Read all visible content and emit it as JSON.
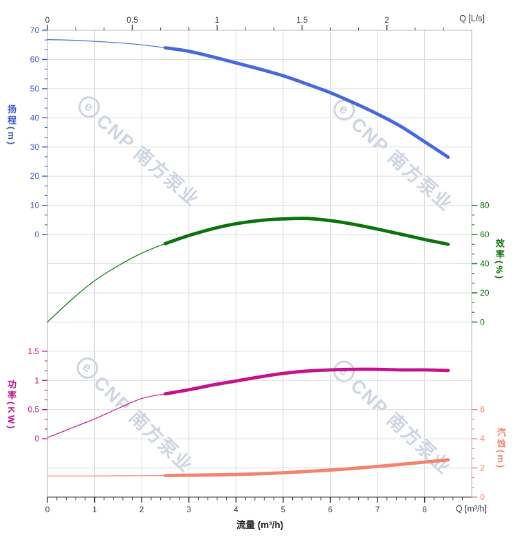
{
  "watermark": {
    "logo_letter": "e",
    "text": "CNP 南方泵业",
    "color": "#cdd4e2"
  },
  "axes": {
    "top": {
      "label": "Q [L/s]",
      "ticks": [
        "0",
        "0.5",
        "1",
        "1.5",
        "2"
      ],
      "tick_values": [
        0,
        0.5,
        1,
        1.5,
        2
      ],
      "max": 2.5,
      "color": "#3b3b3b"
    },
    "bottom": {
      "label": "Q [m³/h]",
      "title": "流量 (m³/h)",
      "ticks": [
        "0",
        "1",
        "2",
        "3",
        "4",
        "5",
        "6",
        "7",
        "8"
      ],
      "tick_values": [
        0,
        1,
        2,
        3,
        4,
        5,
        6,
        7,
        8
      ],
      "max": 9,
      "color": "#3b3b3b"
    },
    "head": {
      "title": "扬程(m)",
      "ticks": [
        "70",
        "60",
        "50",
        "40",
        "30",
        "20",
        "10",
        "0"
      ],
      "tick_values": [
        70,
        60,
        50,
        40,
        30,
        20,
        10,
        0
      ],
      "color": "#3a5ad0"
    },
    "efficiency": {
      "title": "效率(%)",
      "ticks": [
        "80",
        "60",
        "40",
        "20",
        "0"
      ],
      "tick_values": [
        80,
        60,
        40,
        20,
        0
      ],
      "color": "#0b730b"
    },
    "power": {
      "title": "功率(KW)",
      "ticks": [
        "1.5",
        "1",
        "0.5",
        "0"
      ],
      "tick_values": [
        1.5,
        1,
        0.5,
        0
      ],
      "color": "#c2138d"
    },
    "npsh": {
      "title": "汽蚀(m)",
      "ticks": [
        "6",
        "4",
        "2",
        "0"
      ],
      "tick_values": [
        6,
        4,
        2,
        0
      ],
      "color": "#f4826f"
    }
  },
  "chart_data": {
    "type": "line",
    "title": "",
    "xlabel_bottom": "流量 (m³/h)",
    "xlabel_top": "Q [L/s]",
    "x_range_m3h": [
      0,
      9
    ],
    "x_range_ls": [
      0,
      2.5
    ],
    "duty_range_m3h": [
      2.5,
      8.5
    ],
    "grid": true,
    "x": [
      0,
      0.5,
      1,
      1.5,
      2,
      2.5,
      3,
      3.5,
      4,
      4.5,
      5,
      5.5,
      6,
      6.5,
      7,
      7.5,
      8,
      8.5
    ],
    "series": [
      {
        "name": "扬程",
        "unit": "m",
        "axis": "head",
        "color": "#4668de",
        "ylim": [
          0,
          70
        ],
        "values": [
          66.8,
          66.6,
          66.2,
          65.7,
          65.0,
          64.0,
          62.8,
          60.9,
          58.8,
          56.7,
          54.4,
          51.6,
          48.6,
          45.1,
          41.3,
          37.0,
          31.8,
          26.5
        ]
      },
      {
        "name": "效率",
        "unit": "%",
        "axis": "efficiency",
        "color": "#0b730b",
        "ylim": [
          0,
          80
        ],
        "values": [
          0,
          15.0,
          28.3,
          38.6,
          47.2,
          53.8,
          59.3,
          63.9,
          67.4,
          69.6,
          70.7,
          71.0,
          69.5,
          67.0,
          63.7,
          60.2,
          56.6,
          53.3
        ]
      },
      {
        "name": "功率",
        "unit": "KW",
        "axis": "power",
        "color": "#c2138d",
        "ylim": [
          0,
          1.5
        ],
        "values": [
          0.02,
          0.18,
          0.34,
          0.52,
          0.69,
          0.77,
          0.84,
          0.92,
          0.99,
          1.06,
          1.12,
          1.16,
          1.18,
          1.19,
          1.19,
          1.18,
          1.18,
          1.17
        ]
      },
      {
        "name": "汽蚀",
        "unit": "m",
        "axis": "npsh",
        "color": "#f4826f",
        "ylim": [
          0,
          6
        ],
        "values": [
          1.45,
          1.45,
          1.45,
          1.46,
          1.47,
          1.48,
          1.5,
          1.52,
          1.55,
          1.6,
          1.67,
          1.76,
          1.85,
          1.97,
          2.1,
          2.25,
          2.4,
          2.55
        ]
      }
    ]
  }
}
